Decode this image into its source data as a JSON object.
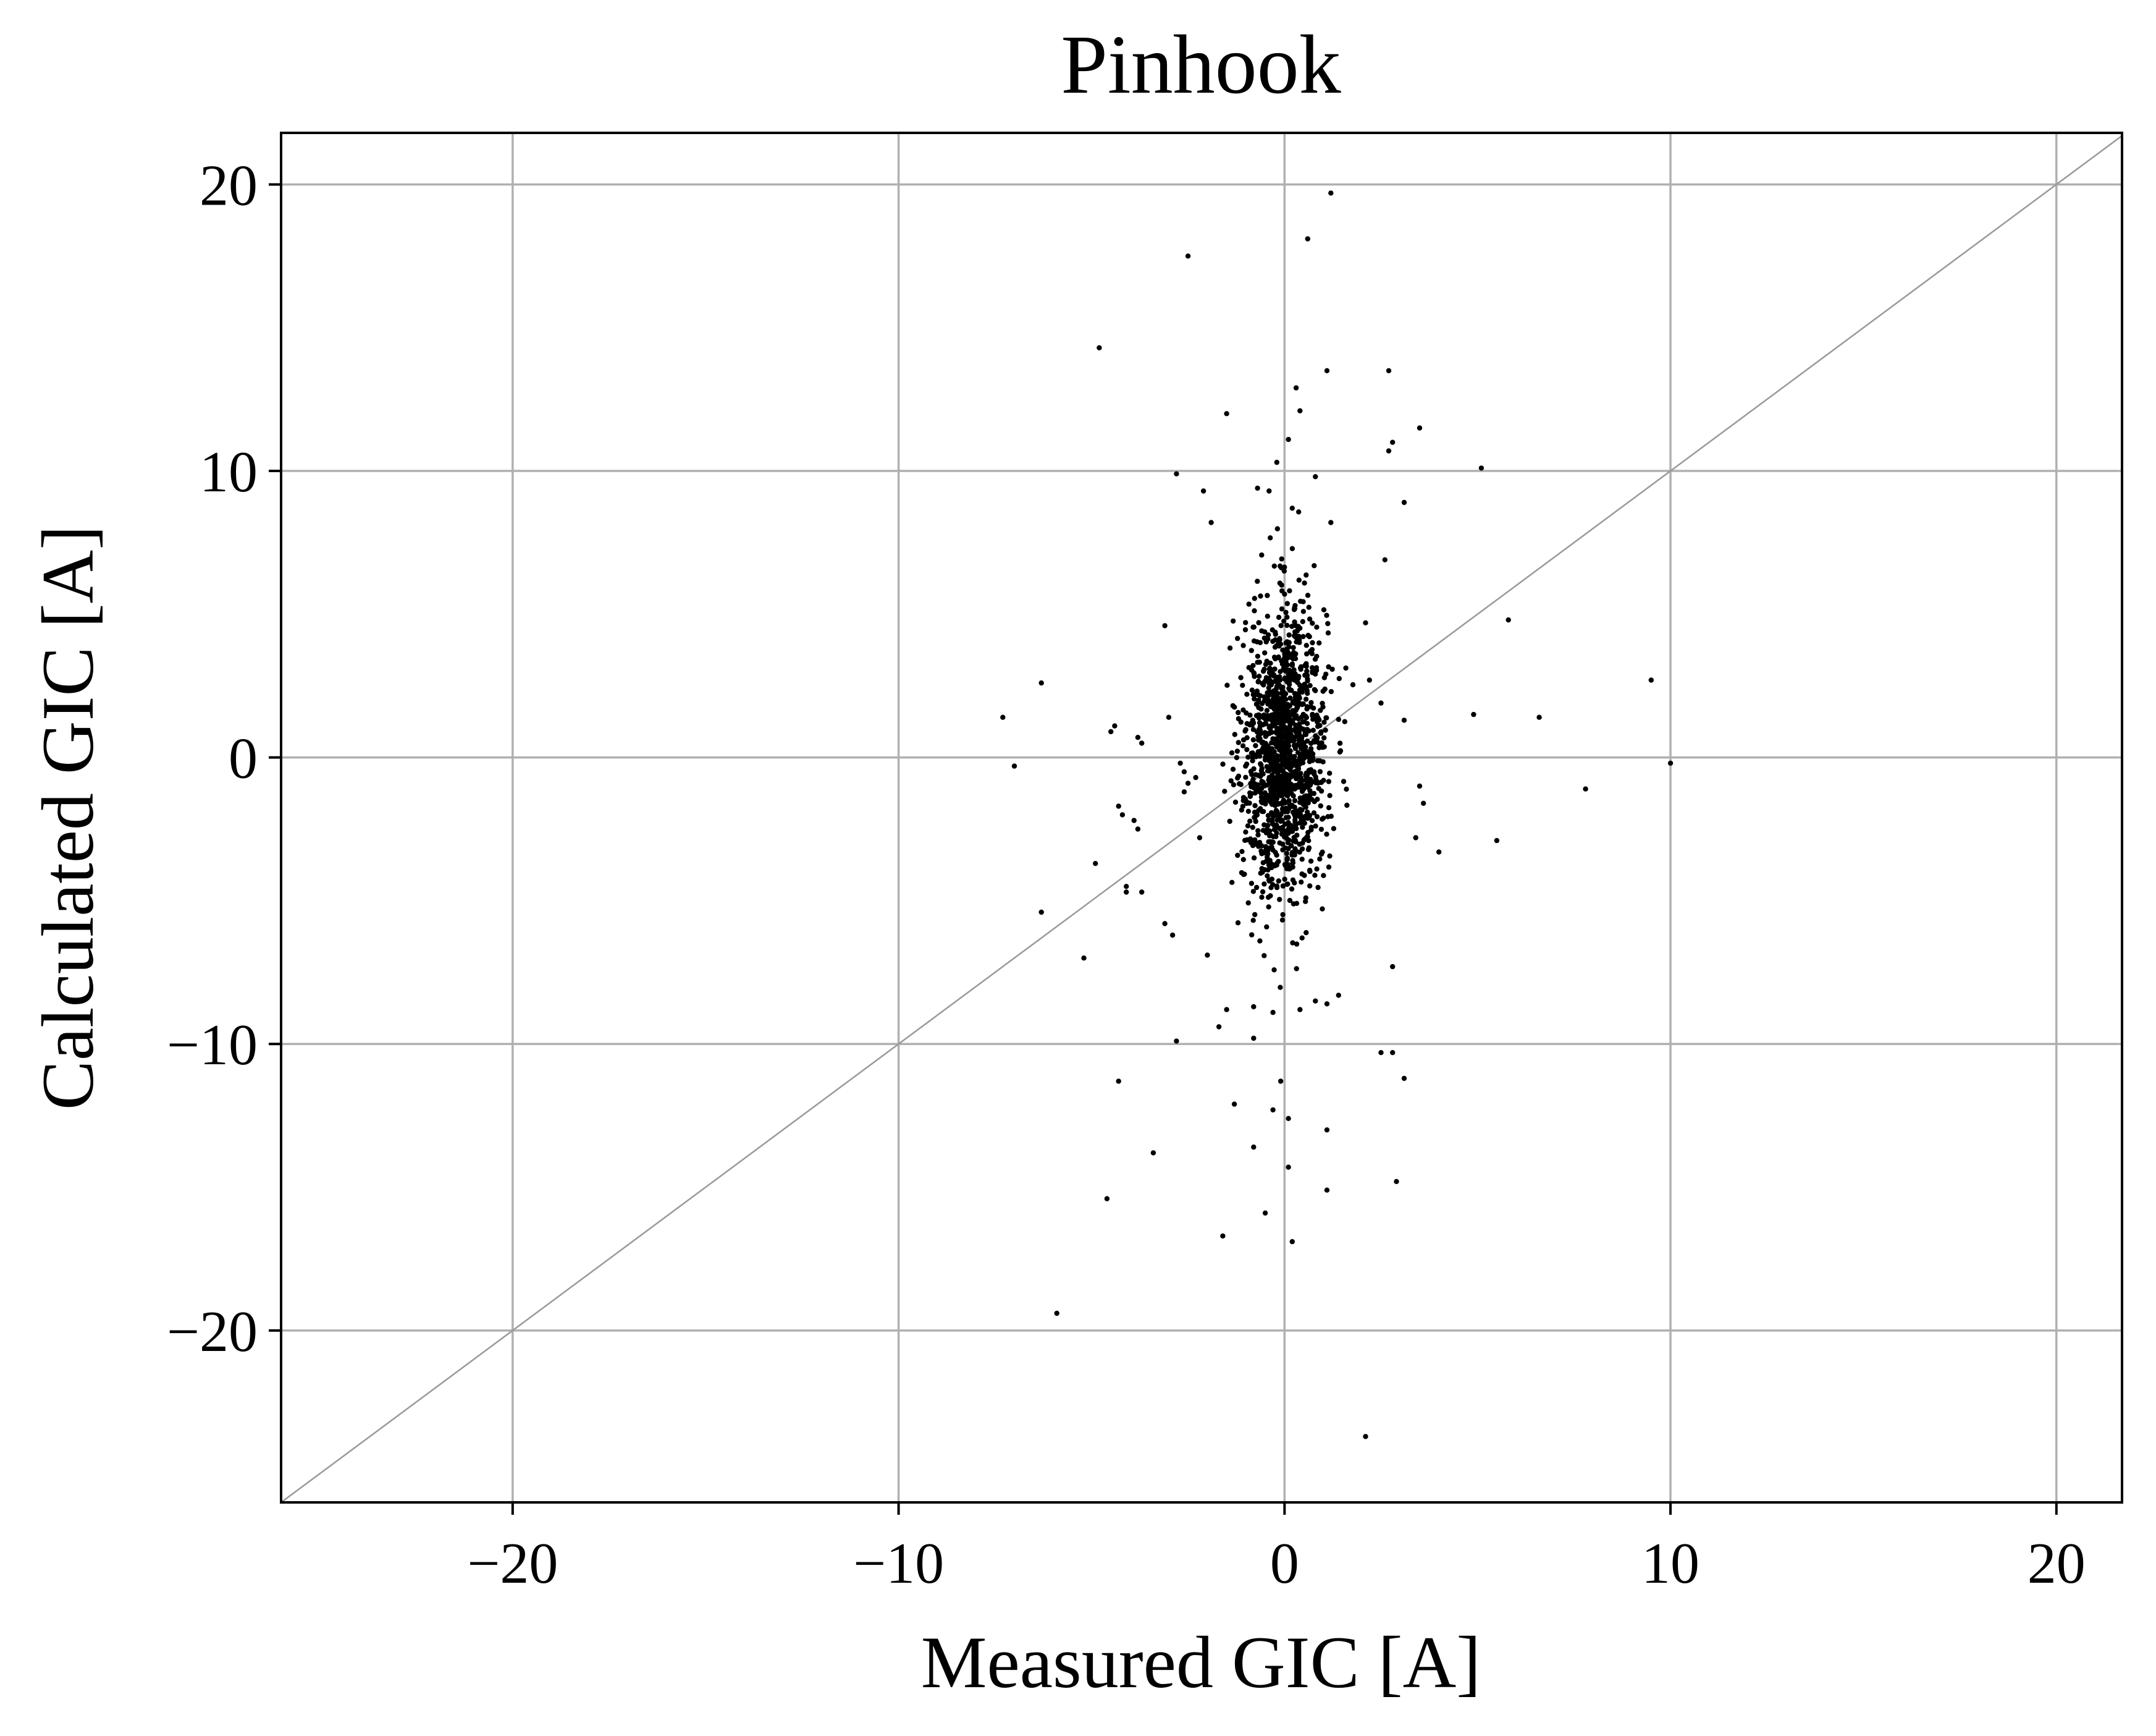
{
  "chart_data": {
    "type": "scatter",
    "title": "Pinhook",
    "xlabel": "Measured GIC [A]",
    "ylabel": "Calculated GIC [A]",
    "xlim": [
      -26,
      21.7
    ],
    "ylim": [
      -26,
      21.8
    ],
    "xticks": [
      {
        "value": -20,
        "label": "−20"
      },
      {
        "value": -10,
        "label": "−10"
      },
      {
        "value": 0,
        "label": "0"
      },
      {
        "value": 10,
        "label": "10"
      },
      {
        "value": 20,
        "label": "20"
      }
    ],
    "yticks": [
      {
        "value": 20,
        "label": "20"
      },
      {
        "value": 10,
        "label": "10"
      },
      {
        "value": 0,
        "label": "0"
      },
      {
        "value": -10,
        "label": "−10"
      },
      {
        "value": -20,
        "label": "−20"
      }
    ],
    "grid": true,
    "reference_line": {
      "type": "identity",
      "color": "#999999"
    },
    "colors": {
      "points": "#000000",
      "grid": "#b0b0b0",
      "axes": "#000000"
    },
    "outliers": [
      [
        1.2,
        19.7
      ],
      [
        0.6,
        18.1
      ],
      [
        -2.5,
        17.5
      ],
      [
        -4.8,
        14.3
      ],
      [
        1.1,
        13.5
      ],
      [
        2.7,
        13.5
      ],
      [
        0.3,
        12.9
      ],
      [
        0.4,
        12.1
      ],
      [
        -1.5,
        12.0
      ],
      [
        3.5,
        11.5
      ],
      [
        2.8,
        11.0
      ],
      [
        2.7,
        10.7
      ],
      [
        0.1,
        11.1
      ],
      [
        -0.2,
        10.3
      ],
      [
        5.1,
        10.1
      ],
      [
        -2.8,
        9.9
      ],
      [
        0.8,
        9.8
      ],
      [
        -0.7,
        9.4
      ],
      [
        -2.1,
        9.3
      ],
      [
        -0.4,
        9.3
      ],
      [
        3.1,
        8.9
      ],
      [
        0.2,
        8.7
      ],
      [
        -1.9,
        8.2
      ],
      [
        1.2,
        8.2
      ],
      [
        2.6,
        6.9
      ],
      [
        5.8,
        4.8
      ],
      [
        2.1,
        4.7
      ],
      [
        -3.1,
        4.6
      ],
      [
        9.5,
        2.7
      ],
      [
        -6.3,
        2.6
      ],
      [
        2.2,
        2.7
      ],
      [
        2.5,
        1.9
      ],
      [
        -7.3,
        1.4
      ],
      [
        4.9,
        1.5
      ],
      [
        6.6,
        1.4
      ],
      [
        -4.4,
        1.1
      ],
      [
        -4.5,
        0.9
      ],
      [
        3.1,
        1.3
      ],
      [
        -3.0,
        1.4
      ],
      [
        -3.8,
        0.7
      ],
      [
        -3.7,
        0.5
      ],
      [
        -7.0,
        -0.3
      ],
      [
        10.0,
        -0.2
      ],
      [
        -2.7,
        -0.2
      ],
      [
        -2.6,
        -0.5
      ],
      [
        -2.3,
        -0.7
      ],
      [
        -2.5,
        -0.9
      ],
      [
        7.8,
        -1.1
      ],
      [
        3.5,
        -1.0
      ],
      [
        -2.6,
        -1.2
      ],
      [
        3.6,
        -1.6
      ],
      [
        -4.3,
        -1.7
      ],
      [
        -4.2,
        -2.0
      ],
      [
        -3.9,
        -2.2
      ],
      [
        -3.8,
        -2.5
      ],
      [
        5.5,
        -2.9
      ],
      [
        3.4,
        -2.8
      ],
      [
        -2.2,
        -2.8
      ],
      [
        4.0,
        -3.3
      ],
      [
        -4.9,
        -3.7
      ],
      [
        -4.1,
        -4.5
      ],
      [
        -4.1,
        -4.7
      ],
      [
        -3.7,
        -4.7
      ],
      [
        -6.3,
        -5.4
      ],
      [
        -3.1,
        -5.8
      ],
      [
        -2.9,
        -6.2
      ],
      [
        -5.2,
        -7.0
      ],
      [
        2.8,
        -7.3
      ],
      [
        -2.0,
        -6.9
      ],
      [
        1.4,
        -8.3
      ],
      [
        0.8,
        -8.5
      ],
      [
        1.1,
        -8.6
      ],
      [
        0.4,
        -8.8
      ],
      [
        -1.5,
        -8.8
      ],
      [
        -0.8,
        -8.7
      ],
      [
        -0.3,
        -8.9
      ],
      [
        -1.7,
        -9.4
      ],
      [
        -0.8,
        -9.8
      ],
      [
        -2.8,
        -9.9
      ],
      [
        2.5,
        -10.3
      ],
      [
        2.8,
        -10.3
      ],
      [
        3.1,
        -11.2
      ],
      [
        -4.3,
        -11.3
      ],
      [
        -0.1,
        -11.3
      ],
      [
        -1.3,
        -12.1
      ],
      [
        -0.3,
        -12.3
      ],
      [
        0.1,
        -12.6
      ],
      [
        1.1,
        -13.0
      ],
      [
        -3.4,
        -13.8
      ],
      [
        -0.8,
        -13.6
      ],
      [
        0.1,
        -14.3
      ],
      [
        1.1,
        -15.1
      ],
      [
        2.9,
        -14.8
      ],
      [
        -4.6,
        -15.4
      ],
      [
        -0.5,
        -15.9
      ],
      [
        -1.6,
        -16.7
      ],
      [
        0.2,
        -16.9
      ],
      [
        -5.9,
        -19.4
      ],
      [
        2.1,
        -23.7
      ]
    ],
    "dense_core": {
      "points": 1400,
      "center": [
        0.0,
        0.2
      ],
      "x_spread": 0.55,
      "y_spread": 2.5,
      "correlation": 0.05
    }
  }
}
